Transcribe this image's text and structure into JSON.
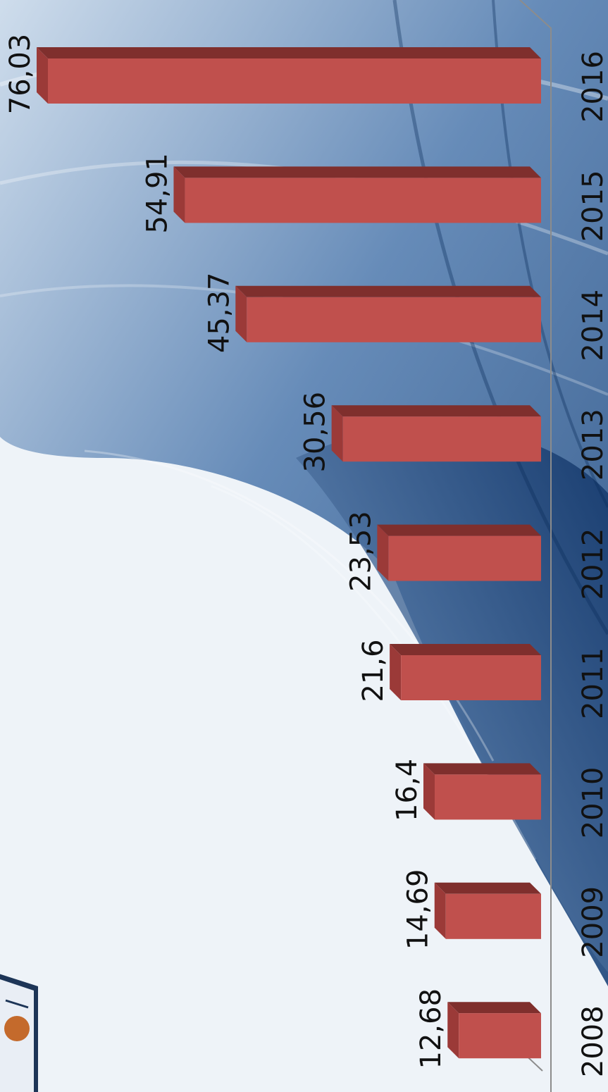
{
  "colors": {
    "bar_face": "#c0504d",
    "bar_top": "#7f2f2d",
    "bar_side": "#9b3a38",
    "background": "#eef3f8",
    "swirl": "#1f4f8a"
  },
  "chart_data": {
    "type": "bar",
    "orientation": "rotated",
    "categories": [
      "2008",
      "2009",
      "2010",
      "2011",
      "2012",
      "2013",
      "2014",
      "2015",
      "2016"
    ],
    "values": [
      12.68,
      14.69,
      16.4,
      21.6,
      23.53,
      30.56,
      45.37,
      54.91,
      76.03
    ],
    "data_labels": [
      "12,68",
      "14,69",
      "16,4",
      "21,6",
      "23,53",
      "30,56",
      "45,37",
      "54,91",
      "76,03"
    ],
    "title": "",
    "xlabel": "",
    "ylabel": "",
    "grid": false,
    "legend": "none"
  }
}
